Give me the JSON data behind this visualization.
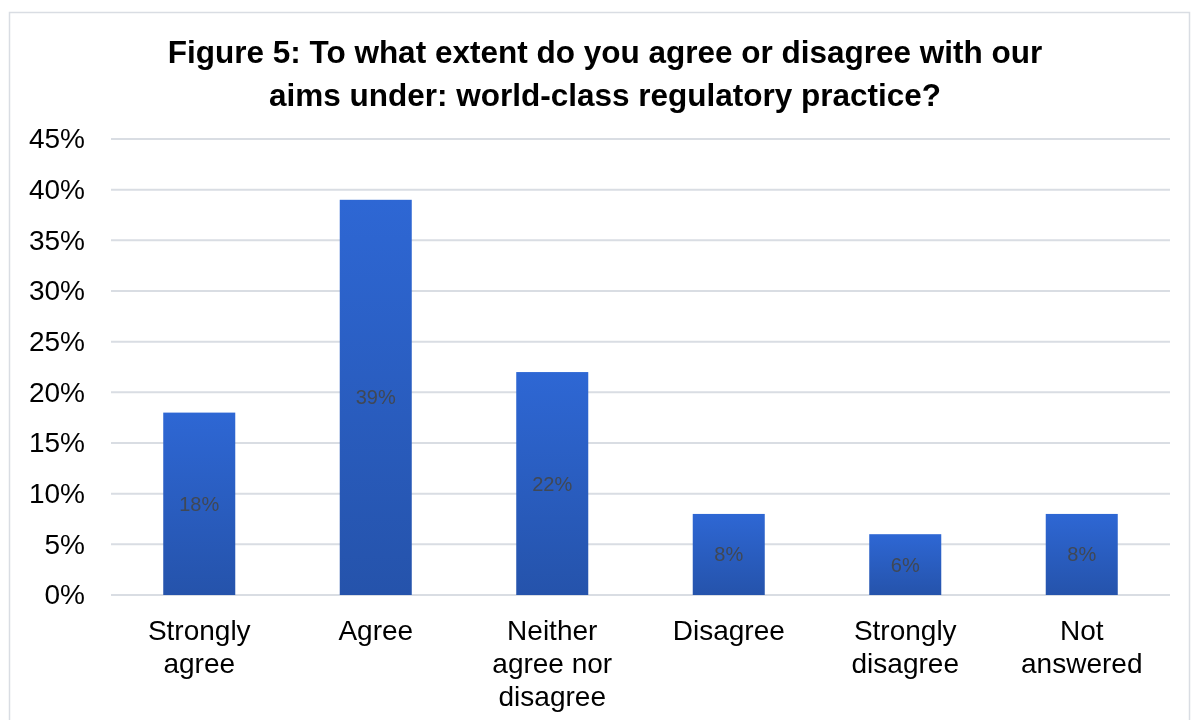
{
  "chart_data": {
    "type": "bar",
    "title": "Figure 5: To what extent do you agree or disagree with our aims under: world-class regulatory practice?",
    "categories": [
      "Strongly agree",
      "Agree",
      "Neither agree nor disagree",
      "Disagree",
      "Strongly disagree",
      "Not answered"
    ],
    "values": [
      18,
      39,
      22,
      8,
      6,
      8
    ],
    "value_labels": [
      "18%",
      "39%",
      "22%",
      "8%",
      "6%",
      "8%"
    ],
    "color": "#2a5ec2",
    "ylim": [
      0,
      45
    ],
    "yticks": [
      {
        "value": 0,
        "label": "0%"
      },
      {
        "value": 5,
        "label": "5%"
      },
      {
        "value": 10,
        "label": "10%"
      },
      {
        "value": 15,
        "label": "15%"
      },
      {
        "value": 20,
        "label": "20%"
      },
      {
        "value": 25,
        "label": "25%"
      },
      {
        "value": 30,
        "label": "30%"
      },
      {
        "value": 35,
        "label": "35%"
      },
      {
        "value": 40,
        "label": "40%"
      },
      {
        "value": 45,
        "label": "45%"
      }
    ],
    "grid": "y"
  }
}
